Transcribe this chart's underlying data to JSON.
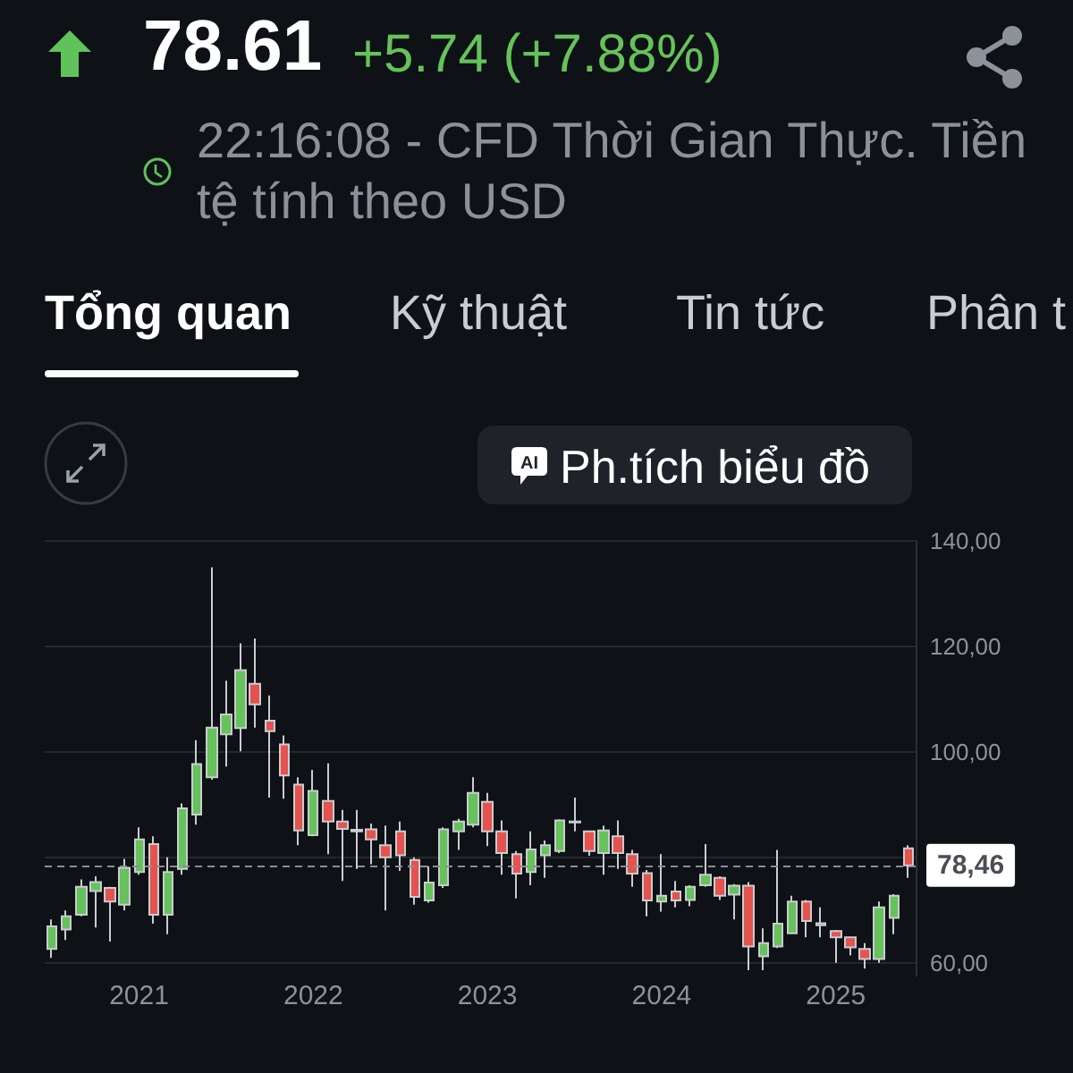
{
  "chart_data": {
    "type": "candlestick",
    "title": "78.61",
    "subtitle": "+5.74 (+7.88%)",
    "annotations": [
      "22:16:08 - CFD Thời Gian Thực. Tiền tệ tính theo USD",
      "Tổng quan",
      "Kỹ thuật",
      "Tin tức",
      "Phân t",
      "Ph.tích biểu đồ",
      "AI"
    ],
    "categories": [
      null,
      null,
      null,
      null,
      null,
      null,
      "2021",
      null,
      null,
      null,
      null,
      null,
      null,
      null,
      null,
      null,
      null,
      null,
      "2022",
      null,
      null,
      null,
      null,
      null,
      null,
      null,
      null,
      null,
      null,
      null,
      "2023",
      null,
      null,
      null,
      null,
      null,
      null,
      null,
      null,
      null,
      null,
      null,
      "2024",
      null,
      null,
      null,
      null,
      null,
      null,
      null,
      null,
      null,
      null,
      null,
      "2025",
      null,
      null,
      null,
      null,
      null
    ],
    "ohlc": [
      [
        62.6,
        68.2,
        60.9,
        66.9
      ],
      [
        66.3,
        69.9,
        64.3,
        68.8
      ],
      [
        69.1,
        75.8,
        68.8,
        74.4
      ],
      [
        73.6,
        76.4,
        66.7,
        75.3
      ],
      [
        74.2,
        74.4,
        64.0,
        71.6
      ],
      [
        71.0,
        79.7,
        69.9,
        78.0
      ],
      [
        77.2,
        85.7,
        76.7,
        83.4
      ],
      [
        82.5,
        84.0,
        67.4,
        69.1
      ],
      [
        69.1,
        80.0,
        65.4,
        77.2
      ],
      [
        77.8,
        90.2,
        76.7,
        89.3
      ],
      [
        88.1,
        102.2,
        86.2,
        97.7
      ],
      [
        95.2,
        135.0,
        94.7,
        104.6
      ],
      [
        103.3,
        113.5,
        97.2,
        107.1
      ],
      [
        104.5,
        120.6,
        100.1,
        115.5
      ],
      [
        112.9,
        121.5,
        104.6,
        109.0
      ],
      [
        105.9,
        110.7,
        91.3,
        103.9
      ],
      [
        101.4,
        103.1,
        91.1,
        95.5
      ],
      [
        93.8,
        95.2,
        82.3,
        85.1
      ],
      [
        84.2,
        96.6,
        84.0,
        92.6
      ],
      [
        90.7,
        97.8,
        80.6,
        86.8
      ],
      [
        86.8,
        89.0,
        75.5,
        85.4
      ],
      [
        85.2,
        89.0,
        77.8,
        84.9
      ],
      [
        85.3,
        86.4,
        78.7,
        83.4
      ],
      [
        82.3,
        86.0,
        69.9,
        80.0
      ],
      [
        84.9,
        86.8,
        77.4,
        80.4
      ],
      [
        79.5,
        80.0,
        71.0,
        72.5
      ],
      [
        71.8,
        78.3,
        71.4,
        75.2
      ],
      [
        74.7,
        85.7,
        74.2,
        85.3
      ],
      [
        84.9,
        87.3,
        81.4,
        86.8
      ],
      [
        86.2,
        95.2,
        85.7,
        92.2
      ],
      [
        90.5,
        92.2,
        82.1,
        84.9
      ],
      [
        84.9,
        87.0,
        76.7,
        80.8
      ],
      [
        80.6,
        81.2,
        72.2,
        76.9
      ],
      [
        77.2,
        84.9,
        74.7,
        81.5
      ],
      [
        80.4,
        83.2,
        76.1,
        82.3
      ],
      [
        81.2,
        87.2,
        80.8,
        87.0
      ],
      [
        86.8,
        91.3,
        84.9,
        86.6
      ],
      [
        84.9,
        85.1,
        80.3,
        81.2
      ],
      [
        80.8,
        86.0,
        76.7,
        85.1
      ],
      [
        84.0,
        87.0,
        77.8,
        80.8
      ],
      [
        80.6,
        81.4,
        74.4,
        76.9
      ],
      [
        77.0,
        77.6,
        68.8,
        71.8
      ],
      [
        71.6,
        80.6,
        69.7,
        72.7
      ],
      [
        73.5,
        75.5,
        70.5,
        71.8
      ],
      [
        71.9,
        74.7,
        70.7,
        74.4
      ],
      [
        74.7,
        82.5,
        74.4,
        76.7
      ],
      [
        76.1,
        76.4,
        71.9,
        72.7
      ],
      [
        72.9,
        74.9,
        68.2,
        74.6
      ],
      [
        74.6,
        75.3,
        58.6,
        63.1
      ],
      [
        61.2,
        66.5,
        58.6,
        63.7
      ],
      [
        63.1,
        81.4,
        62.8,
        67.4
      ],
      [
        65.6,
        72.7,
        65.4,
        71.6
      ],
      [
        71.6,
        71.9,
        64.8,
        67.9
      ],
      [
        67.5,
        70.5,
        64.8,
        67.1
      ],
      [
        66.0,
        66.2,
        60.0,
        64.8
      ],
      [
        64.8,
        65.0,
        61.4,
        62.9
      ],
      [
        62.6,
        63.7,
        58.9,
        60.7
      ],
      [
        60.7,
        71.6,
        60.0,
        70.5
      ],
      [
        68.5,
        73.0,
        65.4,
        72.7
      ],
      [
        81.7,
        82.3,
        76.1,
        78.46
      ]
    ],
    "colors": [
      "#66c25a",
      "#66c25a",
      "#66c25a",
      "#66c25a",
      "#e5534f",
      "#66c25a",
      "#66c25a",
      "#e5534f",
      "#66c25a",
      "#66c25a",
      "#66c25a",
      "#66c25a",
      "#66c25a",
      "#66c25a",
      "#e5534f",
      "#e5534f",
      "#e5534f",
      "#e5534f",
      "#66c25a",
      "#e5534f",
      "#e5534f",
      "#e5534f",
      "#e5534f",
      "#e5534f",
      "#e5534f",
      "#e5534f",
      "#66c25a",
      "#66c25a",
      "#66c25a",
      "#66c25a",
      "#e5534f",
      "#e5534f",
      "#e5534f",
      "#66c25a",
      "#66c25a",
      "#66c25a",
      "#e5534f",
      "#e5534f",
      "#66c25a",
      "#e5534f",
      "#e5534f",
      "#e5534f",
      "#66c25a",
      "#e5534f",
      "#66c25a",
      "#66c25a",
      "#e5534f",
      "#66c25a",
      "#e5534f",
      "#66c25a",
      "#66c25a",
      "#66c25a",
      "#e5534f",
      "#e5534f",
      "#e5534f",
      "#e5534f",
      "#e5534f",
      "#66c25a",
      "#66c25a",
      "#e5534f"
    ],
    "ylim": [
      57.5,
      140
    ],
    "yticks": [
      {
        "value": 60,
        "label": "60,00"
      },
      {
        "value": 80,
        "label": null
      },
      {
        "value": 100,
        "label": "100,00"
      },
      {
        "value": 120,
        "label": "120,00"
      },
      {
        "value": 140,
        "label": "140,00"
      }
    ],
    "grid": "y",
    "ref_lines": [
      {
        "axis": "y",
        "value": 78.46,
        "label": "78,46",
        "line_style": "dashed",
        "color": "#8a8f96"
      }
    ]
  }
}
